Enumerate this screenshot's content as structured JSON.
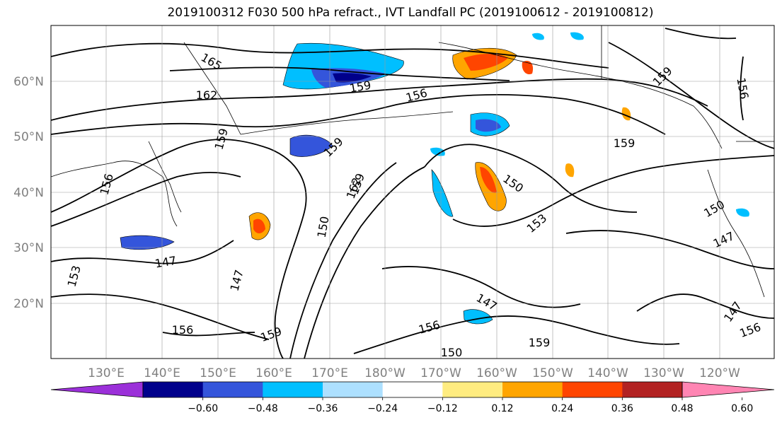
{
  "title": "2019100312 F030 500 hPa refract., IVT Landfall PC (2019100612 - 2019100812)",
  "map": {
    "lat_labels": [
      "60°N",
      "50°N",
      "40°N",
      "30°N",
      "20°N"
    ],
    "lon_labels": [
      "130°E",
      "140°E",
      "150°E",
      "160°E",
      "170°E",
      "180°W",
      "170°W",
      "160°W",
      "150°W",
      "140°W",
      "130°W",
      "120°W"
    ],
    "contour_labels": [
      "165",
      "162",
      "159",
      "156",
      "159",
      "159",
      "156",
      "159",
      "159",
      "150",
      "159",
      "150",
      "147",
      "156",
      "147",
      "147",
      "150",
      "156",
      "159",
      "150",
      "159",
      "147",
      "156",
      "147",
      "153",
      "162",
      "153",
      "156"
    ]
  },
  "colorbar": {
    "ticks": [
      "−0.60",
      "−0.48",
      "−0.36",
      "−0.24",
      "−0.12",
      "0.12",
      "0.24",
      "0.36",
      "0.48",
      "0.60"
    ],
    "colors": [
      "#9b30d9",
      "#00008b",
      "#3455db",
      "#00bfff",
      "#ade0ff",
      "#ffffff",
      "#ffec80",
      "#ffa500",
      "#ff4500",
      "#b22222",
      "#ff85b3"
    ]
  }
}
